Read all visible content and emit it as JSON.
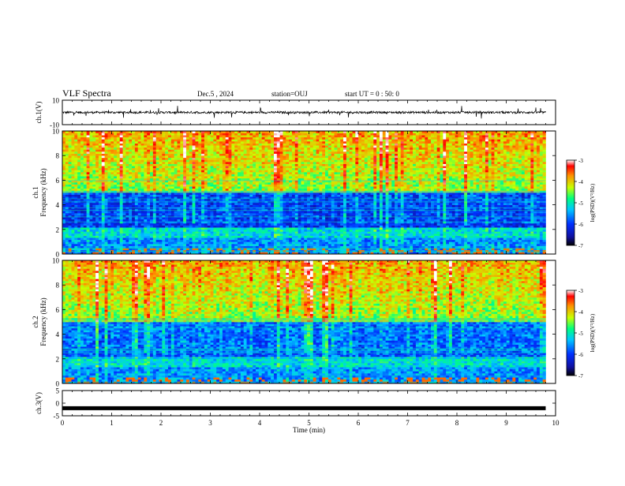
{
  "header": {
    "title": "VLF Spectra",
    "date": "Dec.5 , 2024",
    "station": "station=OUJ",
    "start": "start UT = 0 : 50: 0"
  },
  "chart_data": [
    {
      "type": "line",
      "name": "ch1-waveform",
      "ylabel": "ch.1(V)",
      "ylim": [
        -10,
        10
      ],
      "yticks": [
        "10",
        "-10"
      ],
      "xlim": [
        0,
        10
      ],
      "trace_level": 0,
      "color": "#000000"
    },
    {
      "type": "heatmap",
      "name": "ch1-spectrogram",
      "ylabel_line1": "ch.1",
      "ylabel_line2": "Frequency (kHz)",
      "ylim": [
        0,
        10
      ],
      "yticks": [
        "0",
        "2",
        "4",
        "6",
        "8",
        "10"
      ],
      "xlim": [
        0,
        10
      ],
      "data_end_min": 9.8,
      "colorbar": {
        "label": "log(PSD)(V²/Hz)",
        "range": [
          -7,
          -3
        ],
        "ticks": [
          "-3",
          "-4",
          "-5",
          "-6",
          "-7"
        ]
      }
    },
    {
      "type": "heatmap",
      "name": "ch2-spectrogram",
      "ylabel_line1": "ch.2",
      "ylabel_line2": "Frequency (kHz)",
      "ylim": [
        0,
        10
      ],
      "yticks": [
        "0",
        "2",
        "4",
        "6",
        "8",
        "10"
      ],
      "xlim": [
        0,
        10
      ],
      "data_end_min": 9.8,
      "colorbar": {
        "label": "log(PSD)(V²/Hz)",
        "range": [
          -7,
          -3
        ],
        "ticks": [
          "-3",
          "-4",
          "-5",
          "-6",
          "-7"
        ]
      }
    },
    {
      "type": "line",
      "name": "ch3-waveform",
      "ylabel": "ch.3(V)",
      "ylim": [
        -5,
        5
      ],
      "yticks": [
        "5",
        "0",
        "-5"
      ],
      "xlim": [
        0,
        10
      ],
      "trace_level": -2,
      "color": "#000000"
    }
  ],
  "xaxis": {
    "label": "Time (min)",
    "ticks": [
      "0",
      "1",
      "2",
      "3",
      "4",
      "5",
      "6",
      "7",
      "8",
      "9",
      "10"
    ]
  }
}
